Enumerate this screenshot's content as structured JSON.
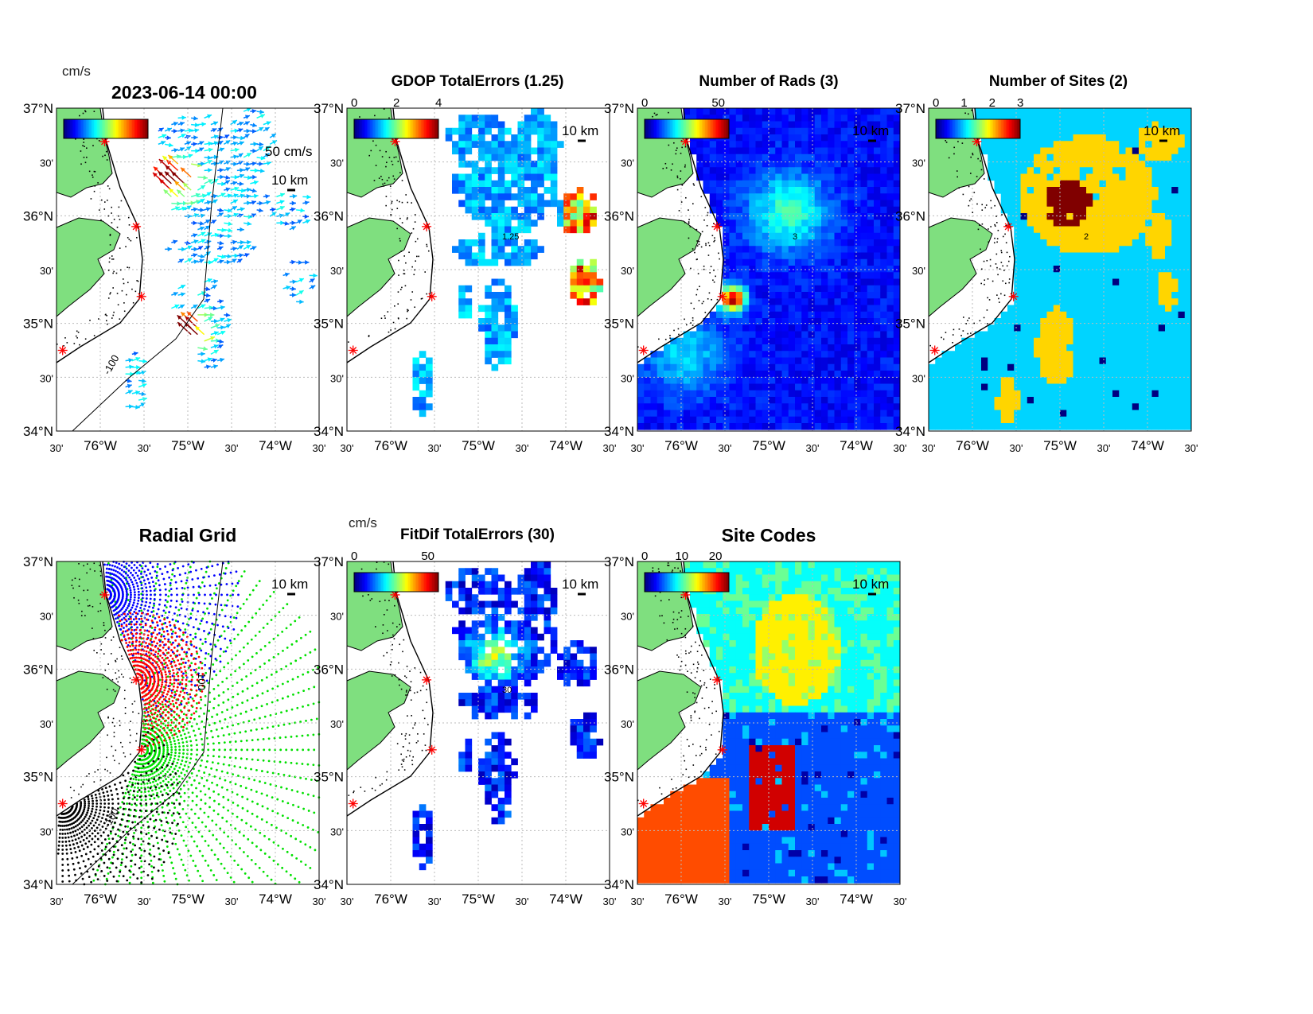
{
  "figure": {
    "main_title": "2023-06-14 00:00",
    "lat_ticks": [
      "37°N",
      "30'",
      "36°N",
      "30'",
      "35°N",
      "30'",
      "34°N"
    ],
    "lon_ticks": [
      "30'",
      "76°W",
      "30'",
      "75°W",
      "30'",
      "74°W",
      "30'"
    ],
    "scale_bar_label": "10 km",
    "lat_range": [
      34,
      37
    ],
    "lon_range": [
      -76.5,
      -73.5
    ],
    "sites": [
      {
        "lon": -75.95,
        "lat": 36.69
      },
      {
        "lon": -75.59,
        "lat": 35.9
      },
      {
        "lon": -75.53,
        "lat": 35.25
      },
      {
        "lon": -76.43,
        "lat": 34.75
      }
    ],
    "isobath_label": "-100",
    "isobath_label_alt": "100"
  },
  "panels": [
    {
      "id": "totals",
      "title": "",
      "cbar_unit": "cm/s",
      "cbar_ticks": [],
      "cbar_range": [
        0,
        100
      ],
      "vector_scale_label": "50 cm/s"
    },
    {
      "id": "gdop",
      "title": "GDOP TotalErrors (1.25)",
      "cbar_ticks": [
        "0",
        "2",
        "4"
      ],
      "cbar_range": [
        0,
        4
      ],
      "contour_label": "1.25"
    },
    {
      "id": "nrads",
      "title": "Number of Rads (3)",
      "cbar_ticks": [
        "0",
        "50"
      ],
      "cbar_range": [
        0,
        60
      ],
      "contour_label": "3"
    },
    {
      "id": "nsites",
      "title": "Number of Sites (2)",
      "cbar_ticks": [
        "0",
        "1",
        "2",
        "3"
      ],
      "cbar_range": [
        0,
        3
      ],
      "contour_label": "2"
    },
    {
      "id": "radgrid",
      "title": "Radial Grid",
      "site_colors": [
        "#0000ff",
        "#ff0000",
        "#00e000",
        "#000000"
      ]
    },
    {
      "id": "fitdif",
      "title": "FitDif TotalErrors (30)",
      "cbar_unit": "cm/s",
      "cbar_ticks": [
        "0",
        "50"
      ],
      "cbar_range": [
        0,
        60
      ],
      "contour_label": "30"
    },
    {
      "id": "sitecodes",
      "title": "Site Codes",
      "cbar_ticks": [
        "0",
        "10",
        "20"
      ],
      "cbar_range": [
        0,
        25
      ]
    }
  ],
  "colors": {
    "land": "#7fdf7f",
    "site_marker": "#ff0000",
    "grid": "#bbbbbb"
  }
}
